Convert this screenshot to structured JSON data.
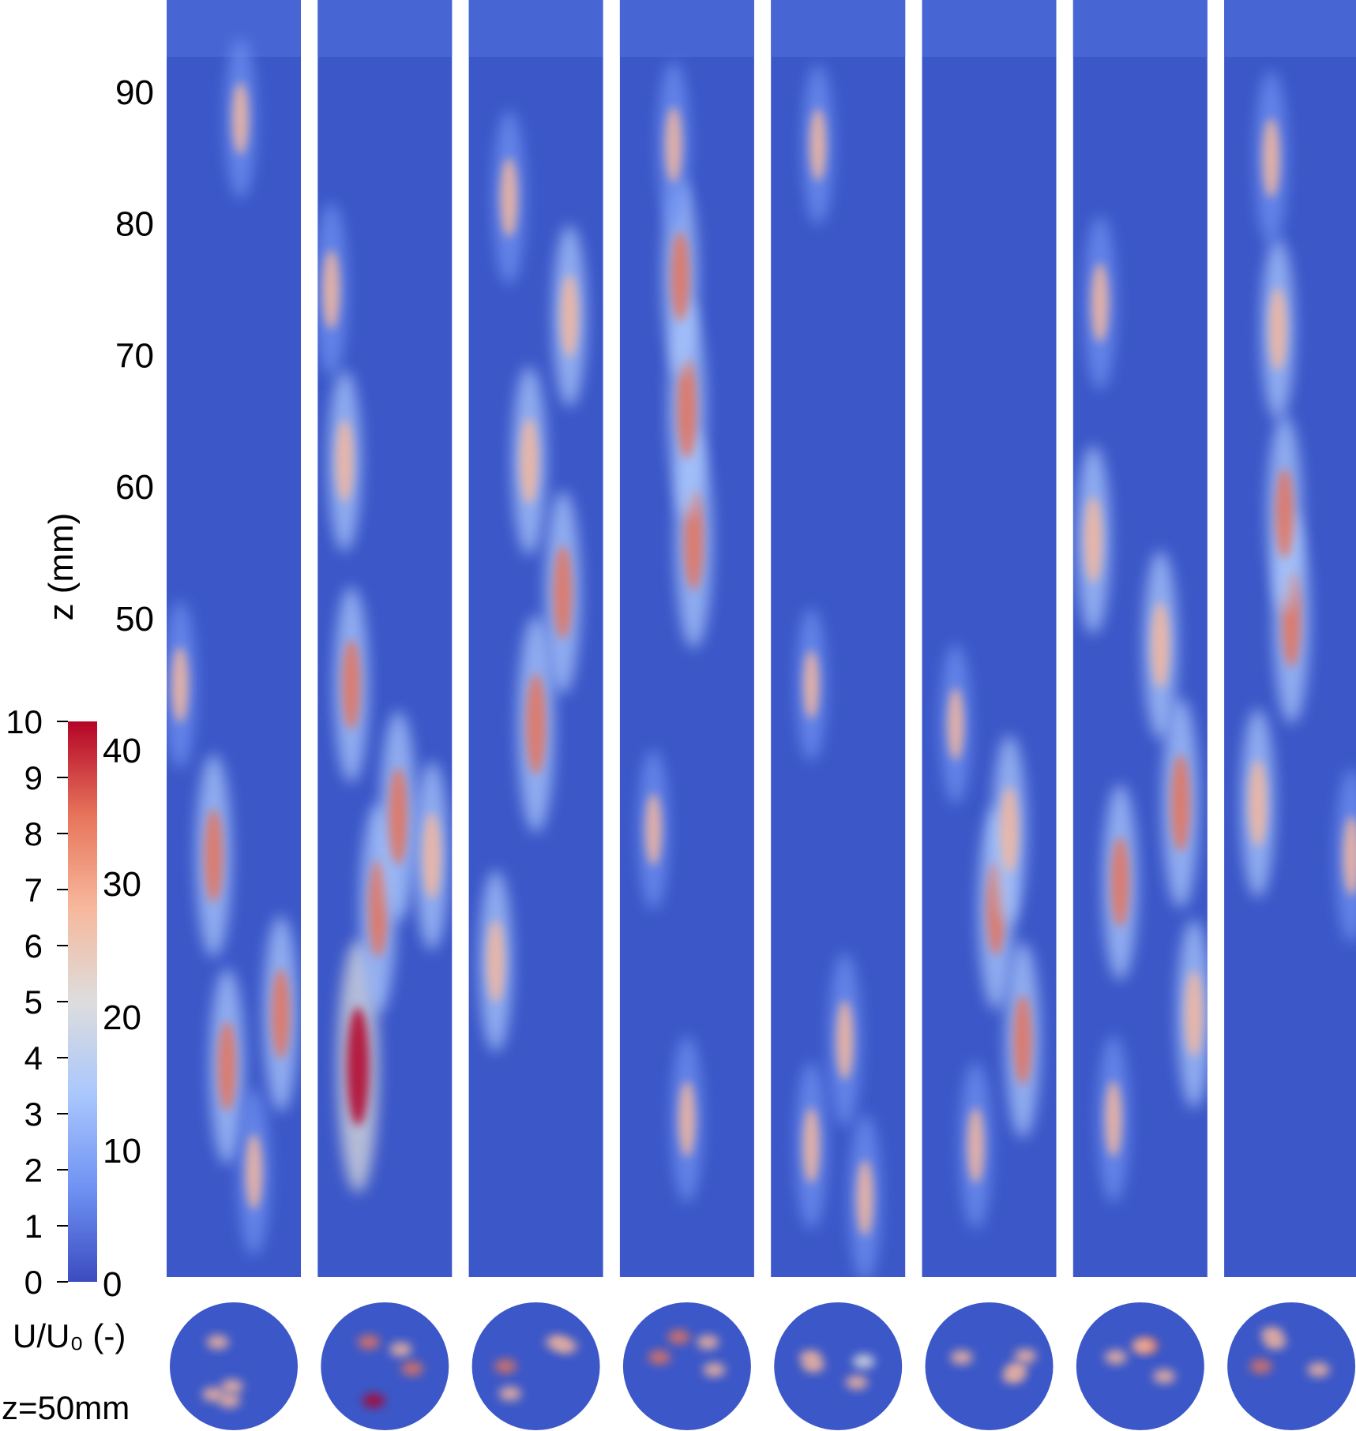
{
  "chart_data": {
    "type": "heatmap",
    "title": "",
    "z_axis": {
      "label": "z (mm)",
      "ticks": [
        90,
        80,
        70,
        60,
        50
      ],
      "range": [
        0,
        97
      ]
    },
    "colorbar": {
      "title": "U/U₀ (-)",
      "left_ticks": [
        10,
        9,
        8,
        7,
        6,
        5,
        4,
        3,
        2,
        1,
        0
      ],
      "right_ticks": [
        40,
        30,
        20,
        10,
        0
      ],
      "left_range": [
        0,
        10
      ],
      "right_range": [
        0,
        42
      ],
      "colormap": "coolwarm",
      "stops": [
        "#3b4cc0",
        "#6f92f3",
        "#aac7fd",
        "#dddddd",
        "#f7b89c",
        "#e7745b",
        "#b40426"
      ]
    },
    "cross_section_label": "z=50mm",
    "panel_count": 8,
    "panels": [
      {
        "hotspots": [
          {
            "z": 32,
            "xf": 0.35,
            "v": 0.65
          },
          {
            "z": 16,
            "xf": 0.45,
            "v": 0.6
          },
          {
            "z": 20,
            "xf": 0.85,
            "v": 0.6
          },
          {
            "z": 8,
            "xf": 0.65,
            "v": 0.4
          },
          {
            "z": 88,
            "xf": 0.55,
            "v": 0.35
          },
          {
            "z": 45,
            "xf": 0.1,
            "v": 0.4
          }
        ]
      },
      {
        "hotspots": [
          {
            "z": 16,
            "xf": 0.3,
            "v": 1.0
          },
          {
            "z": 28,
            "xf": 0.45,
            "v": 0.7
          },
          {
            "z": 35,
            "xf": 0.6,
            "v": 0.7
          },
          {
            "z": 45,
            "xf": 0.25,
            "v": 0.6
          },
          {
            "z": 62,
            "xf": 0.2,
            "v": 0.5
          },
          {
            "z": 75,
            "xf": 0.1,
            "v": 0.45
          },
          {
            "z": 32,
            "xf": 0.85,
            "v": 0.55
          }
        ]
      },
      {
        "hotspots": [
          {
            "z": 42,
            "xf": 0.5,
            "v": 0.75
          },
          {
            "z": 52,
            "xf": 0.7,
            "v": 0.65
          },
          {
            "z": 62,
            "xf": 0.45,
            "v": 0.55
          },
          {
            "z": 73,
            "xf": 0.75,
            "v": 0.5
          },
          {
            "z": 82,
            "xf": 0.3,
            "v": 0.45
          },
          {
            "z": 24,
            "xf": 0.2,
            "v": 0.5
          }
        ]
      },
      {
        "hotspots": [
          {
            "z": 56,
            "xf": 0.55,
            "v": 0.75
          },
          {
            "z": 66,
            "xf": 0.5,
            "v": 0.75
          },
          {
            "z": 76,
            "xf": 0.45,
            "v": 0.6
          },
          {
            "z": 86,
            "xf": 0.4,
            "v": 0.4
          },
          {
            "z": 12,
            "xf": 0.5,
            "v": 0.4
          },
          {
            "z": 34,
            "xf": 0.25,
            "v": 0.35
          }
        ]
      },
      {
        "hotspots": [
          {
            "z": 18,
            "xf": 0.55,
            "v": 0.45
          },
          {
            "z": 10,
            "xf": 0.3,
            "v": 0.4
          },
          {
            "z": 6,
            "xf": 0.7,
            "v": 0.4
          },
          {
            "z": 86,
            "xf": 0.35,
            "v": 0.35
          },
          {
            "z": 45,
            "xf": 0.3,
            "v": 0.3
          }
        ]
      },
      {
        "hotspots": [
          {
            "z": 28,
            "xf": 0.55,
            "v": 0.65
          },
          {
            "z": 18,
            "xf": 0.75,
            "v": 0.6
          },
          {
            "z": 34,
            "xf": 0.65,
            "v": 0.55
          },
          {
            "z": 10,
            "xf": 0.4,
            "v": 0.4
          },
          {
            "z": 42,
            "xf": 0.25,
            "v": 0.35
          }
        ]
      },
      {
        "hotspots": [
          {
            "z": 36,
            "xf": 0.8,
            "v": 0.7
          },
          {
            "z": 30,
            "xf": 0.35,
            "v": 0.6
          },
          {
            "z": 48,
            "xf": 0.65,
            "v": 0.55
          },
          {
            "z": 56,
            "xf": 0.15,
            "v": 0.55
          },
          {
            "z": 20,
            "xf": 0.9,
            "v": 0.55
          },
          {
            "z": 74,
            "xf": 0.2,
            "v": 0.45
          },
          {
            "z": 12,
            "xf": 0.3,
            "v": 0.4
          }
        ]
      },
      {
        "hotspots": [
          {
            "z": 50,
            "xf": 0.5,
            "v": 0.7
          },
          {
            "z": 58,
            "xf": 0.45,
            "v": 0.6
          },
          {
            "z": 36,
            "xf": 0.25,
            "v": 0.55
          },
          {
            "z": 72,
            "xf": 0.4,
            "v": 0.5
          },
          {
            "z": 85,
            "xf": 0.35,
            "v": 0.45
          },
          {
            "z": 32,
            "xf": 0.95,
            "v": 0.45
          }
        ]
      }
    ]
  }
}
